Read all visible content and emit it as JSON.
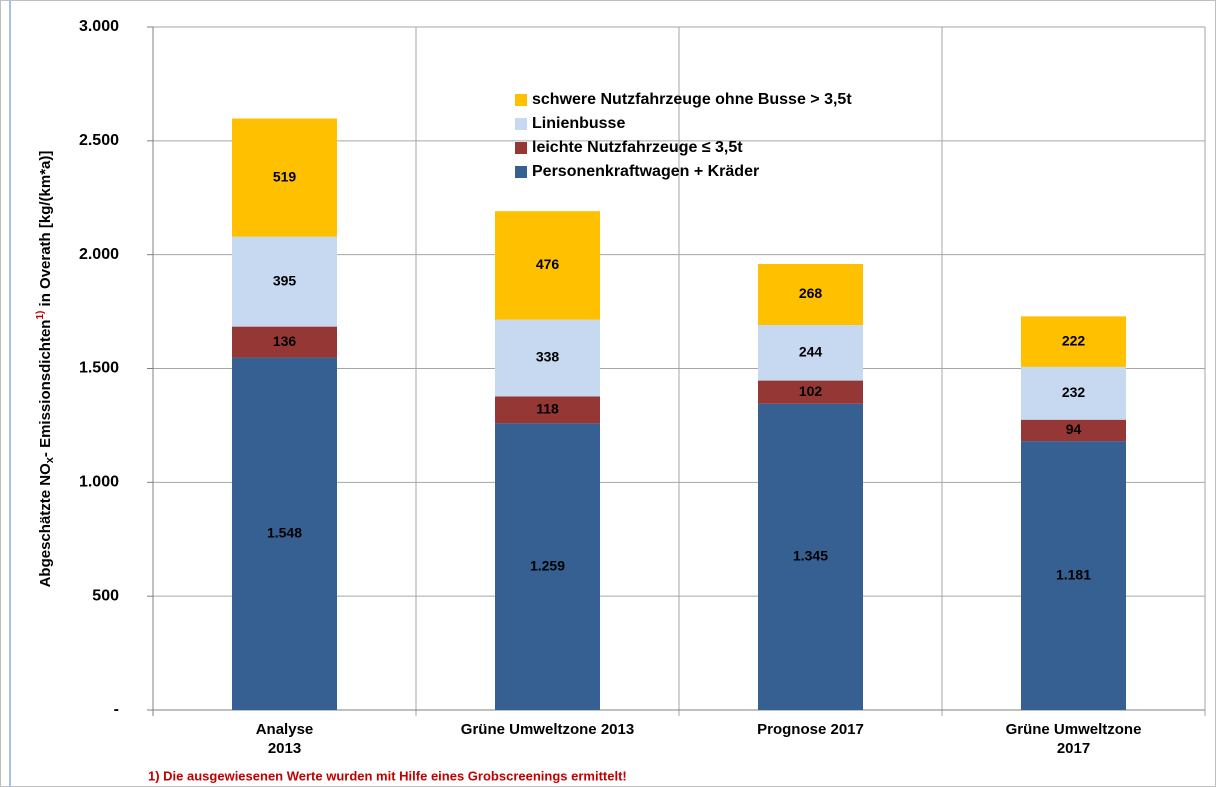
{
  "chart_data": {
    "type": "stacked_bar",
    "ylabel": [
      "Abgeschätzte NO",
      "x",
      "- Emissionsdichten",
      "1)",
      " in Overath [kg/(km*a)]"
    ],
    "categories": [
      "Analyse\n2013",
      "Grüne Umweltzone 2013",
      "Prognose 2017",
      "Grüne Umweltzone\n2017"
    ],
    "series": [
      {
        "name": "Personenkraftwagen + Kräder",
        "color": "#376092",
        "values": [
          1548,
          1259,
          1345,
          1181
        ],
        "value_labels": [
          "1.548",
          "1.259",
          "1.345",
          "1.181"
        ]
      },
      {
        "name": "leichte Nutzfahrzeuge ≤ 3,5t",
        "color": "#953735",
        "values": [
          136,
          118,
          102,
          94
        ]
      },
      {
        "name": "Linienbusse",
        "color": "#c6d9f1",
        "values": [
          395,
          338,
          244,
          232
        ]
      },
      {
        "name": "schwere Nutzfahrzeuge ohne Busse > 3,5t",
        "color": "#ffc000",
        "values": [
          519,
          476,
          268,
          222
        ]
      }
    ],
    "ylim": [
      0,
      3000
    ],
    "yticks": [
      {
        "value": 0,
        "label": "-"
      },
      500,
      {
        "value": 1000,
        "label": "1.000"
      },
      {
        "value": 1500,
        "label": "1.500"
      },
      {
        "value": 2000,
        "label": "2.000"
      },
      {
        "value": 2500,
        "label": "2.500"
      },
      {
        "value": 3000,
        "label": "3.000"
      }
    ],
    "grid": true,
    "legend": "top",
    "footnote": "1) Die ausgewiesenen Werte wurden mit Hilfe eines Grobscreenings ermittelt!"
  }
}
